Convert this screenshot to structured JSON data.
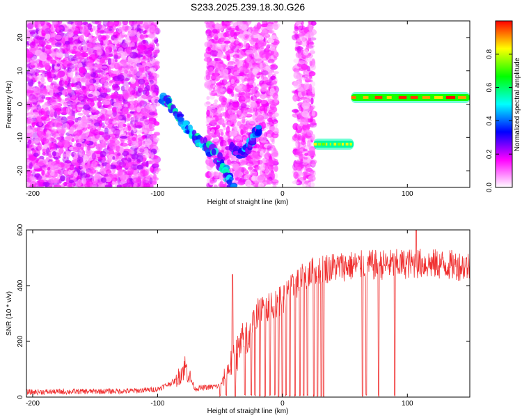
{
  "title": "S233.2025.239.18.30.G26",
  "chart_data": [
    {
      "type": "heatmap",
      "name": "spectrogram",
      "xlabel": "Height of straight line (km)",
      "ylabel": "Frequency (Hz)",
      "xlim": [
        -205,
        150
      ],
      "ylim": [
        -25,
        25
      ],
      "xticks": [
        -200,
        -100,
        0,
        100
      ],
      "yticks": [
        -20,
        -10,
        0,
        10,
        20
      ],
      "colorbar": {
        "label": "Normalized spectral amplitude",
        "range": [
          0,
          1
        ],
        "ticks": [
          "0.0",
          "0.2",
          "0.4",
          "0.6",
          "0.8"
        ],
        "colormap": [
          "#ffffff",
          "#ff00ff",
          "#0000ff",
          "#00ffff",
          "#00ff00",
          "#ffff00",
          "#ff0000"
        ]
      },
      "features": [
        {
          "kind": "noise",
          "x": [
            -205,
            -100
          ],
          "y": [
            -25,
            25
          ],
          "amplitude": 0.12
        },
        {
          "kind": "noise",
          "x": [
            -60,
            -5
          ],
          "y": [
            -25,
            25
          ],
          "amplitude": 0.1
        },
        {
          "kind": "noise",
          "x": [
            10,
            25
          ],
          "y": [
            -25,
            25
          ],
          "amplitude": 0.1
        },
        {
          "kind": "track",
          "points": [
            [
              -97,
              2
            ],
            [
              -90,
              0
            ],
            [
              -80,
              -6
            ],
            [
              -70,
              -10
            ],
            [
              -60,
              -13
            ],
            [
              -50,
              -17
            ],
            [
              -45,
              -21
            ],
            [
              -40,
              -25
            ]
          ],
          "amplitude": 0.4
        },
        {
          "kind": "track",
          "points": [
            [
              -42,
              -13
            ],
            [
              -33,
              -15
            ],
            [
              -28,
              -13
            ],
            [
              -22,
              -9
            ],
            [
              -18,
              -7
            ]
          ],
          "amplitude": 0.35
        },
        {
          "kind": "band",
          "x": [
            25,
            57
          ],
          "y": -12,
          "amplitude": 0.7
        },
        {
          "kind": "band",
          "x": [
            55,
            150
          ],
          "y": 2,
          "amplitude": 0.85
        }
      ]
    },
    {
      "type": "line",
      "name": "snr",
      "xlabel": "Height of straight line (km)",
      "ylabel": "SNR (10 * v/v)",
      "xlim": [
        -205,
        150
      ],
      "ylim": [
        0,
        600
      ],
      "xticks": [
        -200,
        -100,
        0,
        100
      ],
      "yticks": [
        0,
        200,
        400,
        600
      ],
      "color": "#f03030",
      "profile": [
        {
          "x": -205,
          "y": 18
        },
        {
          "x": -120,
          "y": 22
        },
        {
          "x": -100,
          "y": 28
        },
        {
          "x": -85,
          "y": 60
        },
        {
          "x": -78,
          "y": 110
        },
        {
          "x": -70,
          "y": 30
        },
        {
          "x": -50,
          "y": 40
        },
        {
          "x": -40,
          "y": 130
        },
        {
          "x": -30,
          "y": 200
        },
        {
          "x": -20,
          "y": 300
        },
        {
          "x": -10,
          "y": 330
        },
        {
          "x": 0,
          "y": 350
        },
        {
          "x": 10,
          "y": 400
        },
        {
          "x": 20,
          "y": 440
        },
        {
          "x": 30,
          "y": 460
        },
        {
          "x": 50,
          "y": 470
        },
        {
          "x": 80,
          "y": 475
        },
        {
          "x": 110,
          "y": 480
        },
        {
          "x": 150,
          "y": 470
        }
      ],
      "spikes": [
        {
          "x": -40,
          "y": 440
        },
        {
          "x": 107,
          "y": 600
        }
      ],
      "dropouts": [
        -50,
        -45,
        -38,
        -30,
        -25,
        -22,
        -18,
        -14,
        -10,
        -6,
        -3,
        0,
        3,
        6,
        10,
        14,
        17,
        20,
        25,
        28,
        31,
        33,
        64,
        67,
        77,
        90
      ]
    }
  ]
}
